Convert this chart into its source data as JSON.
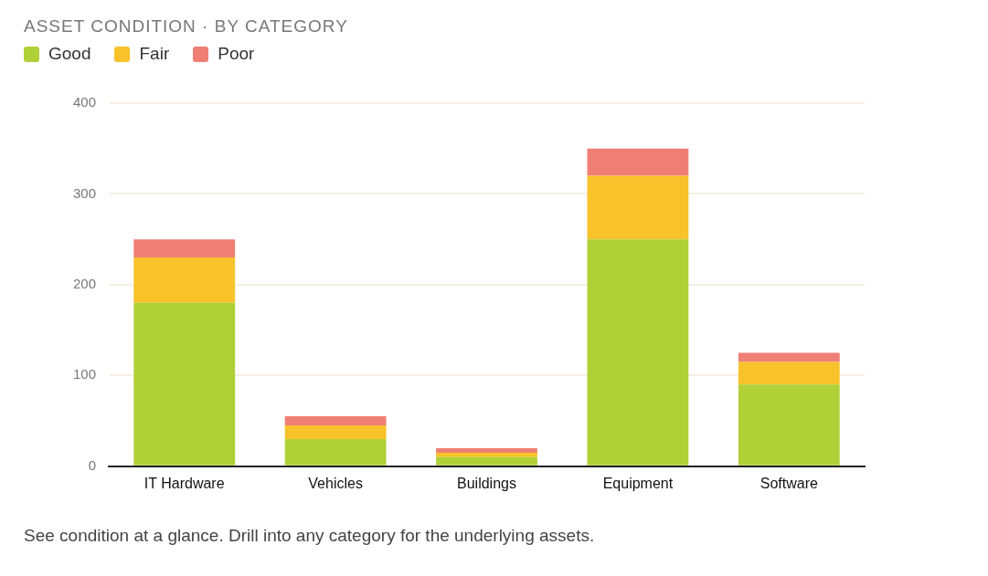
{
  "chart_data": {
    "type": "bar",
    "title": "ASSET CONDITION · BY CATEGORY",
    "categories": [
      "IT Hardware",
      "Vehicles",
      "Buildings",
      "Equipment",
      "Software"
    ],
    "series": [
      {
        "name": "Good",
        "color": "#b0d037",
        "values": [
          180,
          30,
          10,
          250,
          90
        ]
      },
      {
        "name": "Fair",
        "color": "#f7c22a",
        "values": [
          50,
          15,
          5,
          70,
          25
        ]
      },
      {
        "name": "Poor",
        "color": "#ef7f74",
        "values": [
          20,
          10,
          5,
          30,
          10
        ]
      }
    ],
    "stacked": true,
    "ylim": [
      0,
      400
    ],
    "yticks": [
      0,
      100,
      200,
      300,
      400
    ],
    "grid": "y",
    "legend": "top left",
    "annotations": [
      "See condition at a glance. Drill into any category for the underlying assets."
    ]
  }
}
